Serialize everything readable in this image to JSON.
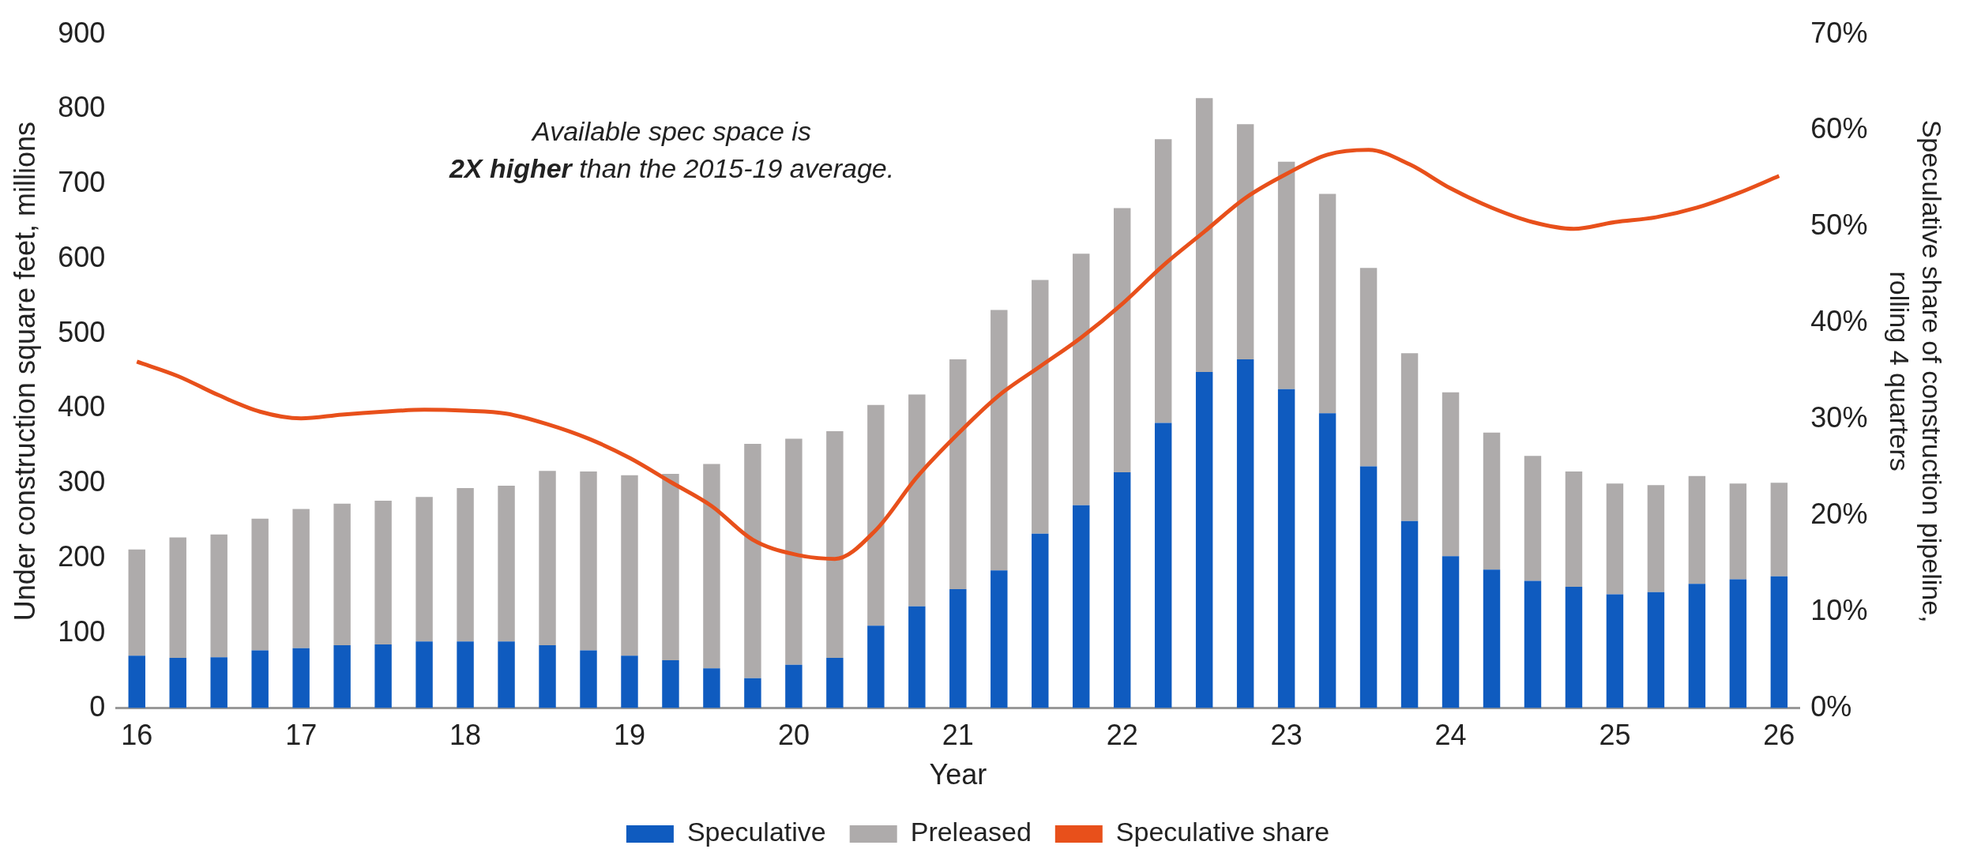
{
  "chart_data": {
    "type": "bar",
    "stacked": true,
    "xlabel": "Year",
    "ylabel": "Under construction square feet, millions",
    "y2label": "Speculative share of construction pipeline, rolling 4 quarters",
    "categories": [
      "16",
      null,
      null,
      null,
      "17",
      null,
      null,
      null,
      "18",
      null,
      null,
      null,
      "19",
      null,
      null,
      null,
      "20",
      null,
      null,
      null,
      "21",
      null,
      null,
      null,
      "22",
      null,
      null,
      null,
      "23",
      null,
      null,
      null,
      "24",
      null,
      null,
      null,
      "25",
      null,
      null,
      null,
      "26"
    ],
    "series": [
      {
        "name": "Speculative",
        "color": "#0f5bbf",
        "values": [
          70,
          67,
          68,
          77,
          80,
          84,
          85,
          89,
          89,
          89,
          84,
          77,
          70,
          64,
          53,
          40,
          58,
          67,
          110,
          136,
          159,
          184,
          233,
          271,
          315,
          381,
          449,
          466,
          426,
          394,
          323,
          250,
          203,
          185,
          170,
          162,
          152,
          155,
          166,
          172,
          176
        ]
      },
      {
        "name": "Preleased",
        "color": "#aeabab",
        "values": [
          142,
          161,
          164,
          176,
          186,
          189,
          192,
          193,
          205,
          208,
          233,
          239,
          241,
          249,
          273,
          313,
          302,
          303,
          295,
          283,
          307,
          348,
          339,
          336,
          353,
          379,
          366,
          314,
          304,
          293,
          265,
          224,
          219,
          183,
          167,
          154,
          148,
          143,
          144,
          128,
          125
        ]
      },
      {
        "name": "Speculative share",
        "type": "line",
        "axis": "y2",
        "color": "#e8501b",
        "values": [
          36,
          34.5,
          32.5,
          30.8,
          30.1,
          30.5,
          30.8,
          31,
          30.9,
          30.6,
          29.5,
          28,
          26,
          23.5,
          21,
          17.5,
          16,
          15.5,
          18.5,
          24,
          28.5,
          32.5,
          35.5,
          38.5,
          42,
          46,
          49.5,
          53,
          55.5,
          57.5,
          58,
          56.5,
          54,
          52,
          50.5,
          49.8,
          50.5,
          51,
          52,
          53.5,
          55.3
        ]
      }
    ],
    "ylim": [
      0,
      900
    ],
    "yticks": [
      0,
      100,
      200,
      300,
      400,
      500,
      600,
      700,
      800,
      900
    ],
    "y2lim": [
      0,
      70
    ],
    "y2ticks": [
      {
        "value": 0,
        "label": "0%"
      },
      {
        "value": 10,
        "label": "10%"
      },
      {
        "value": 20,
        "label": "20%"
      },
      {
        "value": 30,
        "label": "30%"
      },
      {
        "value": 40,
        "label": "40%"
      },
      {
        "value": 50,
        "label": "50%"
      },
      {
        "value": 60,
        "label": "60%"
      },
      {
        "value": 70,
        "label": "70%"
      }
    ],
    "annotations": [
      "Available spec space is",
      "2X higher",
      " than the 2015-19 average."
    ],
    "grid": false,
    "legend": "bottom"
  }
}
